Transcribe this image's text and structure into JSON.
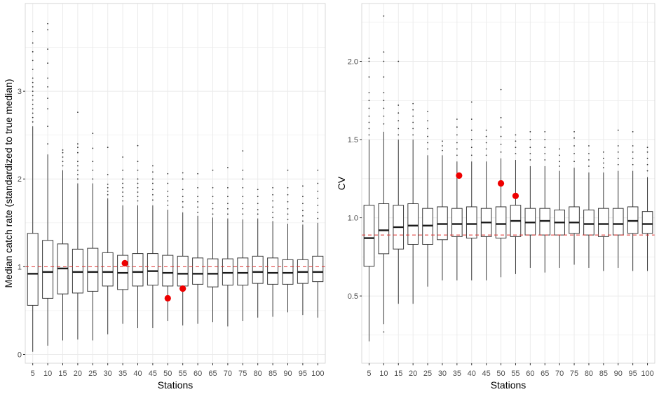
{
  "colors": {
    "panel_background": "#ffffff",
    "grid_line": "#ebebeb",
    "box_outline": "#3a3a3a",
    "median_line": "#1a1a1a",
    "outlier": "#333333",
    "reference_line": "#e0302d",
    "highlight_point": "#ee0000",
    "axis_text": "#4d4d4d",
    "axis_title": "#000000"
  },
  "chart_data": [
    {
      "type": "boxplot",
      "xlabel": "Stations",
      "ylabel": "Median catch rate (standardized to true median)",
      "ylim": [
        -0.1,
        4.0
      ],
      "y_ticks": [
        0,
        1,
        2,
        3
      ],
      "y_tick_labels": [
        "0",
        "1",
        "2",
        "3"
      ],
      "categories": [
        "5",
        "10",
        "15",
        "20",
        "25",
        "30",
        "35",
        "40",
        "45",
        "50",
        "55",
        "60",
        "65",
        "70",
        "75",
        "80",
        "85",
        "90",
        "95",
        "100"
      ],
      "grid": true,
      "reference_line": {
        "y": 1.0,
        "style": "dashed"
      },
      "boxes": [
        {
          "q1": 0.56,
          "median": 0.92,
          "q3": 1.38,
          "whisker_low": 0.03,
          "whisker_high": 2.6,
          "outliers": [
            2.65,
            2.7,
            2.75,
            2.8,
            2.85,
            2.9,
            2.95,
            3.0,
            3.05,
            3.1,
            3.15,
            3.25,
            3.35,
            3.45,
            3.55,
            3.68
          ]
        },
        {
          "q1": 0.64,
          "median": 0.94,
          "q3": 1.3,
          "whisker_low": 0.1,
          "whisker_high": 2.28,
          "outliers": [
            2.4,
            2.6,
            2.8,
            2.92,
            3.05,
            3.15,
            3.32,
            3.48,
            3.7,
            3.77
          ]
        },
        {
          "q1": 0.69,
          "median": 0.98,
          "q3": 1.26,
          "whisker_low": 0.16,
          "whisker_high": 2.1,
          "outliers": [
            2.15,
            2.2,
            2.25,
            2.3,
            2.33
          ]
        },
        {
          "q1": 0.7,
          "median": 0.94,
          "q3": 1.2,
          "whisker_low": 0.17,
          "whisker_high": 1.95,
          "outliers": [
            2.0,
            2.05,
            2.1,
            2.15,
            2.2,
            2.3,
            2.36,
            2.4,
            2.76
          ]
        },
        {
          "q1": 0.72,
          "median": 0.94,
          "q3": 1.21,
          "whisker_low": 0.16,
          "whisker_high": 1.95,
          "outliers": [
            2.0,
            2.1,
            2.2,
            2.35,
            2.52
          ]
        },
        {
          "q1": 0.78,
          "median": 0.94,
          "q3": 1.16,
          "whisker_low": 0.23,
          "whisker_high": 1.78,
          "outliers": [
            1.82,
            1.86,
            1.9,
            1.94,
            2.05,
            2.36
          ]
        },
        {
          "q1": 0.74,
          "median": 0.93,
          "q3": 1.13,
          "whisker_low": 0.35,
          "whisker_high": 1.7,
          "outliers": [
            1.75,
            1.8,
            1.85,
            1.9,
            1.95,
            2.0,
            2.1,
            2.25
          ]
        },
        {
          "q1": 0.78,
          "median": 0.94,
          "q3": 1.15,
          "whisker_low": 0.3,
          "whisker_high": 1.7,
          "outliers": [
            1.75,
            1.8,
            1.85,
            1.9,
            1.95,
            2.0,
            2.1,
            2.2,
            2.38
          ]
        },
        {
          "q1": 0.79,
          "median": 0.95,
          "q3": 1.15,
          "whisker_low": 0.3,
          "whisker_high": 1.7,
          "outliers": [
            1.76,
            1.82,
            1.88,
            1.95,
            2.0,
            2.08,
            2.15
          ]
        },
        {
          "q1": 0.78,
          "median": 0.93,
          "q3": 1.13,
          "whisker_low": 0.38,
          "whisker_high": 1.65,
          "outliers": [
            1.7,
            1.75,
            1.8,
            1.86,
            1.95,
            2.06
          ]
        },
        {
          "q1": 0.78,
          "median": 0.92,
          "q3": 1.12,
          "whisker_low": 0.33,
          "whisker_high": 1.62,
          "outliers": [
            1.68,
            1.74,
            1.8,
            1.88,
            2.0,
            2.07
          ]
        },
        {
          "q1": 0.8,
          "median": 0.92,
          "q3": 1.1,
          "whisker_low": 0.35,
          "whisker_high": 1.58,
          "outliers": [
            1.62,
            1.68,
            1.74,
            1.8,
            1.9,
            2.06
          ]
        },
        {
          "q1": 0.77,
          "median": 0.92,
          "q3": 1.09,
          "whisker_low": 0.37,
          "whisker_high": 1.56,
          "outliers": [
            1.6,
            1.66,
            1.72,
            1.8,
            1.9,
            2.1
          ]
        },
        {
          "q1": 0.79,
          "median": 0.93,
          "q3": 1.09,
          "whisker_low": 0.32,
          "whisker_high": 1.55,
          "outliers": [
            1.6,
            1.66,
            1.72,
            1.8,
            1.9,
            2.13
          ]
        },
        {
          "q1": 0.79,
          "median": 0.93,
          "q3": 1.1,
          "whisker_low": 0.38,
          "whisker_high": 1.54,
          "outliers": [
            1.6,
            1.66,
            1.72,
            1.8,
            1.9,
            2.0,
            2.1,
            2.32
          ]
        },
        {
          "q1": 0.81,
          "median": 0.94,
          "q3": 1.12,
          "whisker_low": 0.42,
          "whisker_high": 1.55,
          "outliers": [
            1.6,
            1.65,
            1.72,
            1.8,
            1.88
          ]
        },
        {
          "q1": 0.8,
          "median": 0.93,
          "q3": 1.1,
          "whisker_low": 0.43,
          "whisker_high": 1.52,
          "outliers": [
            1.56,
            1.62,
            1.68,
            1.75,
            1.82,
            1.9
          ]
        },
        {
          "q1": 0.8,
          "median": 0.93,
          "q3": 1.08,
          "whisker_low": 0.48,
          "whisker_high": 1.49,
          "outliers": [
            1.54,
            1.6,
            1.66,
            1.74,
            1.82,
            1.9,
            2.1
          ]
        },
        {
          "q1": 0.81,
          "median": 0.94,
          "q3": 1.08,
          "whisker_low": 0.45,
          "whisker_high": 1.48,
          "outliers": [
            1.52,
            1.58,
            1.64,
            1.72,
            1.8,
            1.92
          ]
        },
        {
          "q1": 0.83,
          "median": 0.94,
          "q3": 1.12,
          "whisker_low": 0.42,
          "whisker_high": 1.5,
          "outliers": [
            1.55,
            1.62,
            1.7,
            1.78,
            1.86,
            1.95,
            2.1
          ]
        }
      ],
      "highlight_points": [
        {
          "category": "35",
          "y": 1.04
        },
        {
          "category": "50",
          "y": 0.64
        },
        {
          "category": "55",
          "y": 0.75
        }
      ]
    },
    {
      "type": "boxplot",
      "xlabel": "Stations",
      "ylabel": "CV",
      "ylim": [
        0.07,
        2.37
      ],
      "y_ticks": [
        0.5,
        1.0,
        1.5,
        2.0
      ],
      "y_tick_labels": [
        "0.5",
        "1.0",
        "1.5",
        "2.0"
      ],
      "categories": [
        "5",
        "10",
        "15",
        "20",
        "25",
        "30",
        "35",
        "40",
        "45",
        "50",
        "55",
        "60",
        "65",
        "70",
        "75",
        "80",
        "85",
        "90",
        "95",
        "100"
      ],
      "grid": true,
      "reference_line": {
        "y": 0.89,
        "style": "dashed"
      },
      "boxes": [
        {
          "q1": 0.69,
          "median": 0.87,
          "q3": 1.08,
          "whisker_low": 0.21,
          "whisker_high": 1.5,
          "outliers": [
            1.53,
            1.57,
            1.61,
            1.65,
            1.7,
            1.75,
            1.8,
            1.9,
            2.0,
            2.02
          ]
        },
        {
          "q1": 0.77,
          "median": 0.92,
          "q3": 1.09,
          "whisker_low": 0.32,
          "whisker_high": 1.55,
          "outliers": [
            0.27,
            1.6,
            1.65,
            1.7,
            1.75,
            1.8,
            1.9,
            2.0,
            2.06,
            2.29
          ]
        },
        {
          "q1": 0.8,
          "median": 0.94,
          "q3": 1.08,
          "whisker_low": 0.45,
          "whisker_high": 1.5,
          "outliers": [
            1.53,
            1.57,
            1.62,
            1.67,
            1.72,
            2.0
          ]
        },
        {
          "q1": 0.83,
          "median": 0.95,
          "q3": 1.09,
          "whisker_low": 0.45,
          "whisker_high": 1.5,
          "outliers": [
            1.53,
            1.57,
            1.61,
            1.65,
            1.69,
            1.73
          ]
        },
        {
          "q1": 0.83,
          "median": 0.95,
          "q3": 1.06,
          "whisker_low": 0.56,
          "whisker_high": 1.4,
          "outliers": [
            1.44,
            1.48,
            1.52,
            1.57,
            1.62,
            1.68
          ]
        },
        {
          "q1": 0.86,
          "median": 0.96,
          "q3": 1.07,
          "whisker_low": 0.6,
          "whisker_high": 1.4,
          "outliers": [
            1.43,
            1.46,
            1.49
          ]
        },
        {
          "q1": 0.88,
          "median": 0.96,
          "q3": 1.06,
          "whisker_low": 0.6,
          "whisker_high": 1.36,
          "outliers": [
            1.4,
            1.44,
            1.48,
            1.53,
            1.58,
            1.63
          ]
        },
        {
          "q1": 0.87,
          "median": 0.96,
          "q3": 1.07,
          "whisker_low": 0.6,
          "whisker_high": 1.36,
          "outliers": [
            1.4,
            1.45,
            1.5,
            1.56,
            1.63,
            1.74
          ]
        },
        {
          "q1": 0.88,
          "median": 0.97,
          "q3": 1.06,
          "whisker_low": 0.6,
          "whisker_high": 1.36,
          "outliers": [
            1.4,
            1.44,
            1.48,
            1.52,
            1.56
          ]
        },
        {
          "q1": 0.87,
          "median": 0.96,
          "q3": 1.07,
          "whisker_low": 0.62,
          "whisker_high": 1.38,
          "outliers": [
            1.42,
            1.47,
            1.52,
            1.58,
            1.64,
            1.82
          ]
        },
        {
          "q1": 0.88,
          "median": 0.98,
          "q3": 1.08,
          "whisker_low": 0.64,
          "whisker_high": 1.37,
          "outliers": [
            1.41,
            1.45,
            1.49,
            1.53
          ]
        },
        {
          "q1": 0.89,
          "median": 0.97,
          "q3": 1.06,
          "whisker_low": 0.68,
          "whisker_high": 1.33,
          "outliers": [
            1.37,
            1.41,
            1.45,
            1.5,
            1.55
          ]
        },
        {
          "q1": 0.89,
          "median": 0.98,
          "q3": 1.06,
          "whisker_low": 0.65,
          "whisker_high": 1.33,
          "outliers": [
            1.37,
            1.41,
            1.45,
            1.5,
            1.55
          ]
        },
        {
          "q1": 0.89,
          "median": 0.97,
          "q3": 1.05,
          "whisker_low": 0.68,
          "whisker_high": 1.3,
          "outliers": [
            1.33,
            1.36,
            1.4,
            1.44
          ]
        },
        {
          "q1": 0.9,
          "median": 0.97,
          "q3": 1.07,
          "whisker_low": 0.7,
          "whisker_high": 1.32,
          "outliers": [
            1.36,
            1.41,
            1.46,
            1.51,
            1.55
          ]
        },
        {
          "q1": 0.89,
          "median": 0.96,
          "q3": 1.05,
          "whisker_low": 0.68,
          "whisker_high": 1.29,
          "outliers": [
            1.33,
            1.37,
            1.41,
            1.46
          ]
        },
        {
          "q1": 0.88,
          "median": 0.96,
          "q3": 1.06,
          "whisker_low": 0.66,
          "whisker_high": 1.29,
          "outliers": [
            1.32,
            1.35,
            1.38,
            1.42
          ]
        },
        {
          "q1": 0.89,
          "median": 0.96,
          "q3": 1.06,
          "whisker_low": 0.68,
          "whisker_high": 1.3,
          "outliers": [
            1.34,
            1.38,
            1.42,
            1.46,
            1.56
          ]
        },
        {
          "q1": 0.9,
          "median": 0.98,
          "q3": 1.07,
          "whisker_low": 0.66,
          "whisker_high": 1.3,
          "outliers": [
            1.34,
            1.38,
            1.42,
            1.46,
            1.55
          ]
        },
        {
          "q1": 0.9,
          "median": 0.96,
          "q3": 1.04,
          "whisker_low": 0.66,
          "whisker_high": 1.26,
          "outliers": [
            1.3,
            1.34,
            1.38,
            1.42,
            1.45
          ]
        }
      ],
      "highlight_points": [
        {
          "category": "35",
          "y": 1.27
        },
        {
          "category": "50",
          "y": 1.22
        },
        {
          "category": "55",
          "y": 1.14
        }
      ]
    }
  ]
}
